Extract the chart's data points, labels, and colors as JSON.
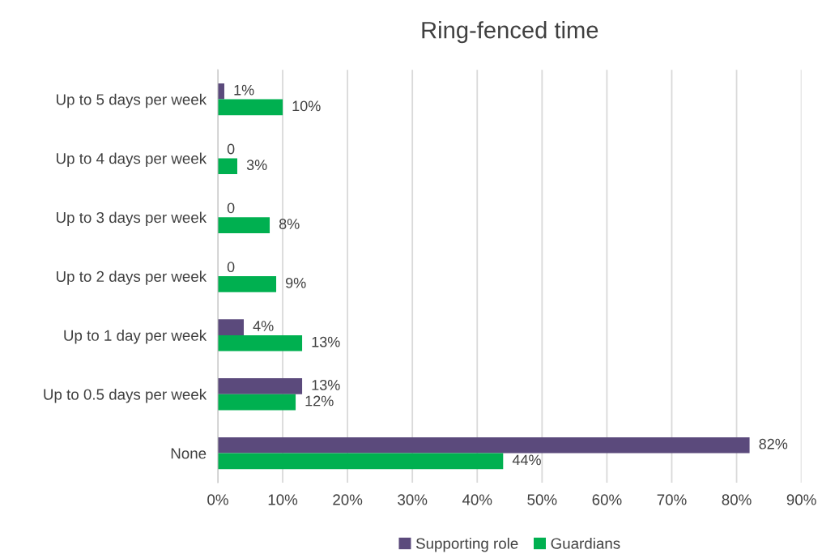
{
  "chart_data": {
    "type": "bar",
    "title": "Ring-fenced time",
    "orientation": "horizontal",
    "categories": [
      "Up to 5 days per week",
      "Up to 4 days per week",
      "Up to 3 days per week",
      "Up to 2 days per week",
      "Up to 1 day per week",
      "Up to 0.5 days per week",
      "None"
    ],
    "series": [
      {
        "name": "Supporting role",
        "color": "#5b4a7c",
        "values": [
          1,
          0,
          0,
          0,
          4,
          13,
          82
        ],
        "value_labels": [
          "1%",
          "0",
          "0",
          "0",
          "4%",
          "13%",
          "82%"
        ]
      },
      {
        "name": "Guardians",
        "color": "#00b050",
        "values": [
          10,
          3,
          8,
          9,
          13,
          12,
          44
        ],
        "value_labels": [
          "10%",
          "3%",
          "8%",
          "9%",
          "13%",
          "12%",
          "44%"
        ]
      }
    ],
    "xlim": [
      0,
      90
    ],
    "xticks": [
      {
        "value": 0,
        "label": "0%"
      },
      {
        "value": 10,
        "label": "10%"
      },
      {
        "value": 20,
        "label": "20%"
      },
      {
        "value": 30,
        "label": "30%"
      },
      {
        "value": 40,
        "label": "40%"
      },
      {
        "value": 50,
        "label": "50%"
      },
      {
        "value": 60,
        "label": "60%"
      },
      {
        "value": 70,
        "label": "70%"
      },
      {
        "value": 80,
        "label": "80%"
      },
      {
        "value": 90,
        "label": "90%"
      }
    ],
    "grid": "x",
    "legend": "bottom"
  }
}
